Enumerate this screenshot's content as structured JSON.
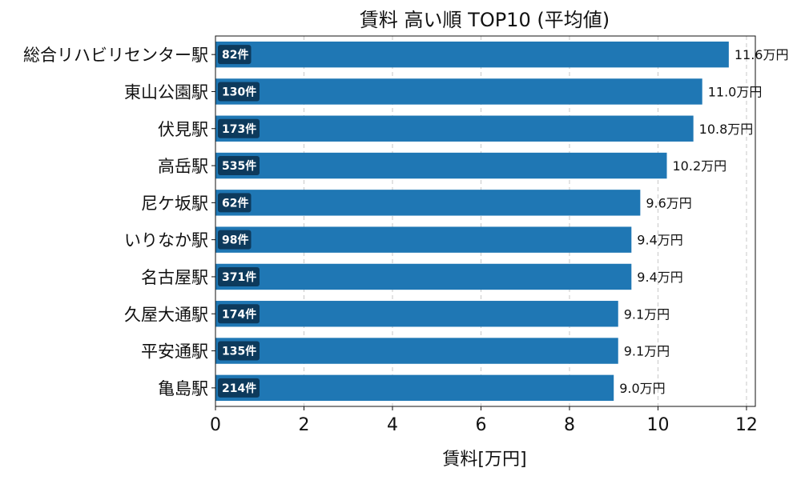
{
  "chart_data": {
    "type": "bar",
    "orientation": "horizontal",
    "title": "賃料 高い順 TOP10 (平均値)",
    "xlabel": "賃料[万円]",
    "ylabel": "",
    "xlim": [
      0,
      12.2
    ],
    "xticks": [
      0,
      2,
      4,
      6,
      8,
      10,
      12
    ],
    "grid": "x-dashed",
    "bar_color": "#1f77b4",
    "badge_color": "#0d3a5c",
    "value_suffix": "万円",
    "count_suffix": "件",
    "categories": [
      "総合リハビリセンター駅",
      "東山公園駅",
      "伏見駅",
      "高岳駅",
      "尼ケ坂駅",
      "いりなか駅",
      "名古屋駅",
      "久屋大通駅",
      "平安通駅",
      "亀島駅"
    ],
    "values": [
      11.6,
      11.0,
      10.8,
      10.2,
      9.6,
      9.4,
      9.4,
      9.1,
      9.1,
      9.0
    ],
    "counts": [
      82,
      130,
      173,
      535,
      62,
      98,
      371,
      174,
      135,
      214
    ]
  }
}
